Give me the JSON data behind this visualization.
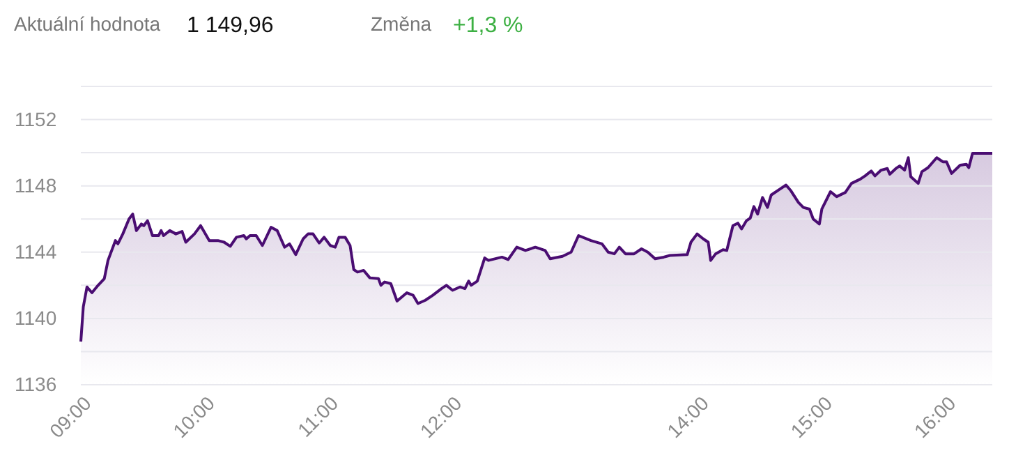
{
  "chart_data": {
    "type": "area",
    "annotations": [
      "Aktuální hodnota",
      "1 149,96",
      "Změna",
      "+1,3 %"
    ],
    "x": [
      9.0,
      9.02,
      9.05,
      9.09,
      9.14,
      9.19,
      9.22,
      9.28,
      9.3,
      9.34,
      9.39,
      9.42,
      9.45,
      9.49,
      9.51,
      9.54,
      9.58,
      9.63,
      9.65,
      9.67,
      9.72,
      9.77,
      9.82,
      9.85,
      9.92,
      9.97,
      10.04,
      10.11,
      10.16,
      10.21,
      10.26,
      10.32,
      10.34,
      10.37,
      10.42,
      10.47,
      10.54,
      10.59,
      10.65,
      10.69,
      10.74,
      10.8,
      10.84,
      10.88,
      10.93,
      10.97,
      11.02,
      11.06,
      11.09,
      11.14,
      11.18,
      11.21,
      11.24,
      11.29,
      11.34,
      11.41,
      11.43,
      11.46,
      11.51,
      11.56,
      11.6,
      11.64,
      11.69,
      11.73,
      11.79,
      11.85,
      11.92,
      11.96,
      12.01,
      12.07,
      12.11,
      12.14,
      12.16,
      12.21,
      12.27,
      12.3,
      12.41,
      12.46,
      12.53,
      12.6,
      12.68,
      12.76,
      12.8,
      12.9,
      12.97,
      13.03,
      13.13,
      13.22,
      13.27,
      13.32,
      13.36,
      13.41,
      13.48,
      13.54,
      13.59,
      13.65,
      13.72,
      13.77,
      13.91,
      13.94,
      13.99,
      14.04,
      14.08,
      14.1,
      14.14,
      14.2,
      14.23,
      14.28,
      14.32,
      14.35,
      14.39,
      14.42,
      14.45,
      14.48,
      14.52,
      14.56,
      14.59,
      14.66,
      14.71,
      14.75,
      14.81,
      14.85,
      14.9,
      14.93,
      14.98,
      15.0,
      15.07,
      15.12,
      15.19,
      15.24,
      15.31,
      15.35,
      15.4,
      15.43,
      15.48,
      15.53,
      15.55,
      15.6,
      15.63,
      15.67,
      15.7,
      15.72,
      15.78,
      15.81,
      15.86,
      15.93,
      15.98,
      16.01,
      16.05,
      16.12,
      16.17,
      16.19,
      16.22,
      16.38
    ],
    "series": [
      {
        "color": "#4a0d72",
        "values": [
          1138.6,
          1140.7,
          1141.9,
          1141.55,
          1142.0,
          1142.4,
          1143.5,
          1144.7,
          1144.5,
          1145.1,
          1146.0,
          1146.3,
          1145.3,
          1145.7,
          1145.6,
          1145.9,
          1145.0,
          1145.0,
          1145.3,
          1145.0,
          1145.3,
          1145.1,
          1145.25,
          1144.6,
          1145.1,
          1145.6,
          1144.7,
          1144.7,
          1144.6,
          1144.35,
          1144.9,
          1145.0,
          1144.8,
          1145.0,
          1145.0,
          1144.4,
          1145.5,
          1145.3,
          1144.3,
          1144.5,
          1143.85,
          1144.8,
          1145.1,
          1145.1,
          1144.55,
          1144.9,
          1144.4,
          1144.3,
          1144.9,
          1144.9,
          1144.4,
          1142.95,
          1142.8,
          1142.9,
          1142.45,
          1142.4,
          1142.0,
          1142.2,
          1142.1,
          1141.05,
          1141.3,
          1141.55,
          1141.4,
          1140.9,
          1141.1,
          1141.4,
          1141.8,
          1142.0,
          1141.7,
          1141.9,
          1141.8,
          1142.25,
          1142.0,
          1142.25,
          1143.65,
          1143.5,
          1143.7,
          1143.55,
          1144.3,
          1144.1,
          1144.3,
          1144.1,
          1143.6,
          1143.75,
          1144.0,
          1145.0,
          1144.7,
          1144.5,
          1144.0,
          1143.9,
          1144.3,
          1143.9,
          1143.9,
          1144.2,
          1144.0,
          1143.6,
          1143.7,
          1143.8,
          1143.85,
          1144.6,
          1145.1,
          1144.8,
          1144.6,
          1143.5,
          1143.9,
          1144.15,
          1144.1,
          1145.6,
          1145.75,
          1145.4,
          1145.9,
          1146.05,
          1146.75,
          1146.3,
          1147.3,
          1146.7,
          1147.45,
          1147.8,
          1148.05,
          1147.7,
          1147.0,
          1146.7,
          1146.6,
          1146.0,
          1145.7,
          1146.6,
          1147.65,
          1147.35,
          1147.6,
          1148.15,
          1148.4,
          1148.6,
          1148.9,
          1148.6,
          1148.95,
          1149.05,
          1148.7,
          1149.05,
          1149.2,
          1148.95,
          1149.7,
          1148.55,
          1148.15,
          1148.85,
          1149.1,
          1149.7,
          1149.45,
          1149.45,
          1148.75,
          1149.25,
          1149.3,
          1149.1,
          1149.96,
          1149.96
        ]
      }
    ],
    "xlim": [
      9,
      16.38
    ],
    "xticks": [
      {
        "value": 9,
        "label": "09:00"
      },
      {
        "value": 10,
        "label": "10:00"
      },
      {
        "value": 11,
        "label": "11:00"
      },
      {
        "value": 12,
        "label": "12:00"
      },
      {
        "value": 14,
        "label": "14:00"
      },
      {
        "value": 15,
        "label": "15:00"
      },
      {
        "value": 16,
        "label": "16:00"
      }
    ],
    "ylim": [
      1136,
      1154
    ],
    "yticks": [
      1136,
      {
        "value": 1138,
        "label": null
      },
      1140,
      {
        "value": 1142,
        "label": null
      },
      1144,
      {
        "value": 1146,
        "label": null
      },
      1148,
      {
        "value": 1150,
        "label": null
      },
      1152,
      {
        "value": 1154,
        "label": null
      }
    ],
    "grid": "y"
  }
}
